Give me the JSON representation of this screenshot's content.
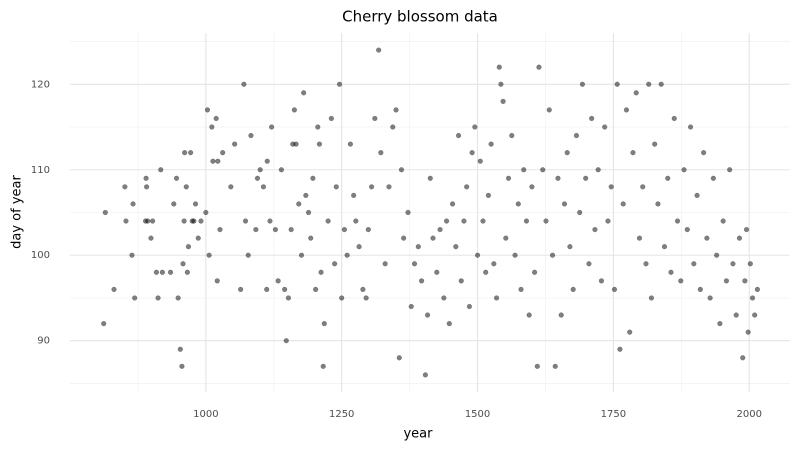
{
  "chart_data": {
    "type": "scatter",
    "title": "Cherry blossom data",
    "x_label": "year",
    "y_label": "day of year",
    "color": "#000000",
    "grid": true,
    "xlim": [
      750,
      2075
    ],
    "ylim": [
      84,
      126
    ],
    "xticks": [
      1000,
      1250,
      1500,
      1750,
      2000
    ],
    "yticks": [
      90,
      100,
      110,
      120
    ],
    "x_minor_ticks": [
      875,
      1125,
      1375,
      1625,
      1875
    ],
    "y_minor_ticks": [
      85,
      95,
      105,
      115,
      125
    ],
    "x": [
      812,
      815,
      831,
      851,
      853,
      864,
      866,
      869,
      889,
      890,
      891,
      893,
      899,
      902,
      909,
      912,
      917,
      920,
      935,
      941,
      946,
      949,
      953,
      956,
      958,
      960,
      961,
      964,
      966,
      968,
      972,
      975,
      978,
      981,
      986,
      991,
      1000,
      1003,
      1006,
      1011,
      1013,
      1019,
      1021,
      1022,
      1026,
      1031,
      1046,
      1053,
      1064,
      1070,
      1073,
      1078,
      1083,
      1092,
      1095,
      1100,
      1106,
      1112,
      1113,
      1118,
      1121,
      1128,
      1133,
      1139,
      1145,
      1148,
      1152,
      1157,
      1160,
      1163,
      1166,
      1171,
      1176,
      1180,
      1184,
      1189,
      1193,
      1197,
      1202,
      1206,
      1209,
      1212,
      1216,
      1218,
      1225,
      1231,
      1237,
      1240,
      1246,
      1250,
      1255,
      1260,
      1266,
      1272,
      1276,
      1282,
      1289,
      1295,
      1299,
      1305,
      1311,
      1318,
      1322,
      1330,
      1337,
      1344,
      1350,
      1356,
      1360,
      1364,
      1372,
      1378,
      1384,
      1391,
      1397,
      1404,
      1408,
      1413,
      1418,
      1425,
      1431,
      1438,
      1443,
      1448,
      1454,
      1460,
      1465,
      1470,
      1475,
      1480,
      1485,
      1490,
      1495,
      1500,
      1505,
      1510,
      1515,
      1520,
      1525,
      1530,
      1535,
      1540,
      1543,
      1547,
      1552,
      1557,
      1563,
      1569,
      1575,
      1580,
      1585,
      1590,
      1595,
      1600,
      1605,
      1610,
      1613,
      1620,
      1626,
      1632,
      1638,
      1643,
      1648,
      1654,
      1660,
      1665,
      1670,
      1676,
      1682,
      1688,
      1693,
      1699,
      1705,
      1710,
      1716,
      1722,
      1728,
      1734,
      1740,
      1746,
      1752,
      1757,
      1762,
      1768,
      1774,
      1780,
      1786,
      1792,
      1798,
      1804,
      1810,
      1815,
      1820,
      1826,
      1832,
      1838,
      1844,
      1850,
      1856,
      1862,
      1868,
      1874,
      1880,
      1886,
      1892,
      1898,
      1904,
      1910,
      1916,
      1922,
      1928,
      1934,
      1940,
      1946,
      1952,
      1958,
      1964,
      1970,
      1976,
      1982,
      1988,
      1992,
      1995,
      1998,
      2002,
      2006,
      2010,
      2015
    ],
    "values": [
      92,
      105,
      96,
      108,
      104,
      100,
      106,
      95,
      104,
      109,
      108,
      104,
      102,
      104,
      98,
      95,
      110,
      98,
      98,
      106,
      109,
      95,
      89,
      87,
      99,
      104,
      112,
      108,
      98,
      101,
      112,
      104,
      104,
      106,
      102,
      104,
      105,
      117,
      100,
      115,
      111,
      116,
      97,
      111,
      103,
      112,
      108,
      113,
      96,
      120,
      104,
      100,
      114,
      103,
      109,
      110,
      108,
      96,
      111,
      104,
      115,
      103,
      97,
      110,
      96,
      90,
      95,
      103,
      113,
      117,
      113,
      106,
      100,
      119,
      107,
      105,
      102,
      109,
      96,
      115,
      113,
      98,
      87,
      92,
      104,
      116,
      99,
      108,
      120,
      95,
      103,
      100,
      113,
      107,
      104,
      101,
      96,
      95,
      103,
      108,
      116,
      124,
      112,
      99,
      108,
      115,
      117,
      88,
      110,
      102,
      105,
      94,
      99,
      101,
      97,
      86,
      93,
      109,
      102,
      98,
      103,
      95,
      104,
      92,
      106,
      101,
      114,
      97,
      104,
      108,
      94,
      112,
      115,
      100,
      111,
      104,
      98,
      107,
      113,
      99,
      95,
      122,
      120,
      118,
      102,
      109,
      114,
      100,
      106,
      96,
      110,
      104,
      93,
      108,
      98,
      87,
      122,
      110,
      104,
      117,
      100,
      87,
      109,
      93,
      106,
      112,
      101,
      96,
      114,
      105,
      120,
      109,
      99,
      116,
      103,
      110,
      97,
      115,
      104,
      108,
      96,
      120,
      89,
      106,
      117,
      91,
      112,
      119,
      102,
      108,
      99,
      120,
      95,
      113,
      106,
      120,
      101,
      109,
      98,
      116,
      104,
      97,
      110,
      103,
      115,
      99,
      107,
      96,
      112,
      102,
      95,
      109,
      100,
      92,
      104,
      97,
      110,
      99,
      93,
      102,
      88,
      97,
      103,
      91,
      99,
      95,
      93,
      96
    ]
  }
}
